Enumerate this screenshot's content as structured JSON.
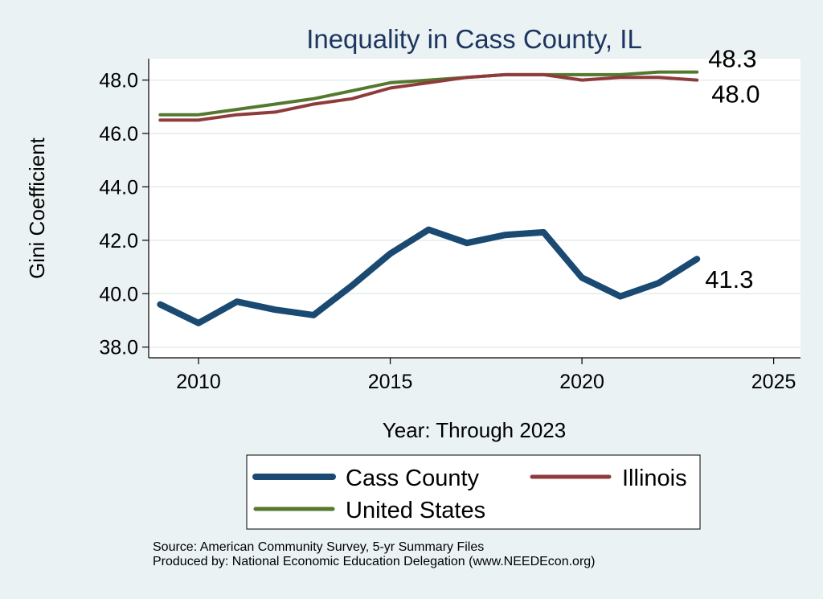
{
  "chart_data": {
    "type": "line",
    "title": "Inequality in Cass County, IL",
    "xlabel": "Year: Through 2023",
    "ylabel": "Gini Coefficient",
    "xlim": [
      2008.7,
      2025.7
    ],
    "ylim": [
      37.6,
      48.8
    ],
    "x_ticks": [
      2010,
      2015,
      2020,
      2025
    ],
    "y_ticks": [
      38.0,
      40.0,
      42.0,
      44.0,
      46.0,
      48.0
    ],
    "x_tick_labels": [
      "2010",
      "2015",
      "2020",
      "2025"
    ],
    "y_tick_labels": [
      "38.0",
      "40.0",
      "42.0",
      "44.0",
      "46.0",
      "48.0"
    ],
    "grid": true,
    "legend_placement": "bottom",
    "x": [
      2009,
      2010,
      2011,
      2012,
      2013,
      2014,
      2015,
      2016,
      2017,
      2018,
      2019,
      2020,
      2021,
      2022,
      2023
    ],
    "series": [
      {
        "name": "Cass County",
        "color": "#1a4a72",
        "values": [
          39.6,
          38.9,
          39.7,
          39.4,
          39.2,
          40.3,
          41.5,
          42.4,
          41.9,
          42.2,
          42.3,
          40.6,
          39.9,
          40.4,
          41.3
        ],
        "end_label": "41.3"
      },
      {
        "name": "Illinois",
        "color": "#903b3b",
        "values": [
          46.5,
          46.5,
          46.7,
          46.8,
          47.1,
          47.3,
          47.7,
          47.9,
          48.1,
          48.2,
          48.2,
          48.0,
          48.1,
          48.1,
          48.0
        ],
        "end_label": "48.0"
      },
      {
        "name": "United States",
        "color": "#55782f",
        "values": [
          46.7,
          46.7,
          46.9,
          47.1,
          47.3,
          47.6,
          47.9,
          48.0,
          48.1,
          48.2,
          48.2,
          48.2,
          48.2,
          48.3,
          48.3
        ],
        "end_label": "48.3"
      }
    ]
  },
  "footer": {
    "source_line": "Source: American Community Survey, 5-yr Summary Files",
    "produced_line": "Produced by: National Economic Education Delegation (www.NEEDEcon.org)"
  }
}
